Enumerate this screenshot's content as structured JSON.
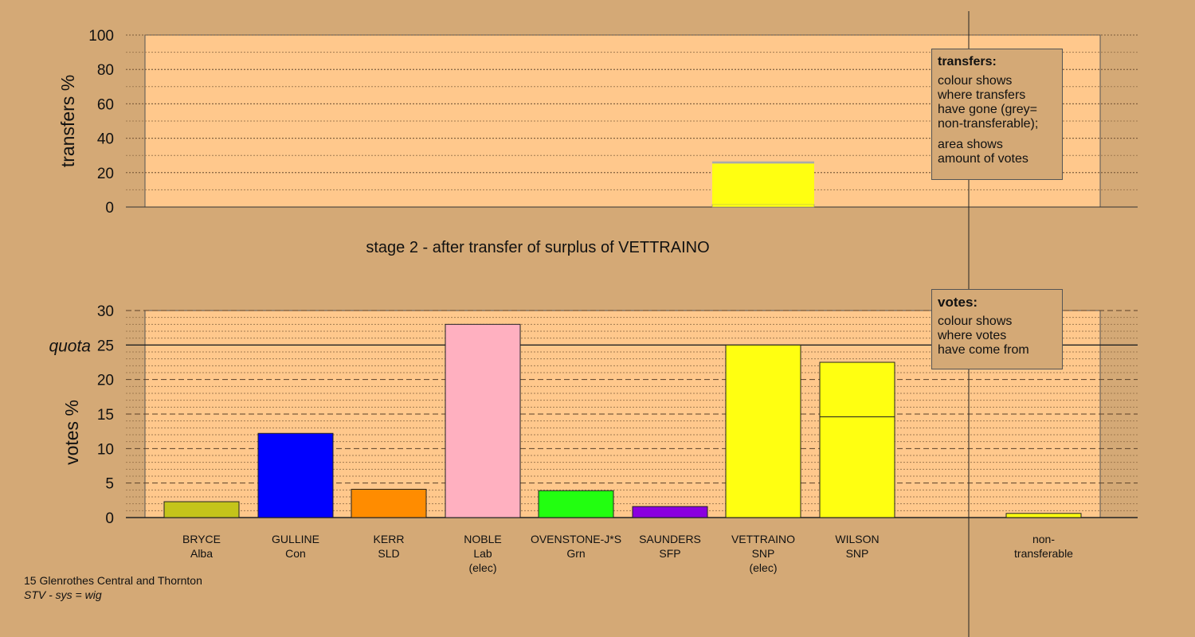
{
  "stage_title": "stage 2 - after transfer of surplus of VETTRAINO",
  "footer": {
    "ward": "15 Glenrothes Central and Thornton",
    "system": "STV - sys = wig"
  },
  "legend_transfers": {
    "title": "transfers:",
    "lines": [
      "colour shows",
      "where transfers",
      "have gone (grey=",
      "non-transferable);",
      "area shows",
      "amount of votes"
    ]
  },
  "legend_votes": {
    "title": "votes:",
    "lines": [
      "colour shows",
      "where votes",
      "have come from"
    ]
  },
  "colors": {
    "background": "#d4a976",
    "plot_bg": "#ffc88c",
    "Alba": "#c4c41a",
    "Con": "#0000ff",
    "SLD": "#ff8c00",
    "Lab": "#ffb0c0",
    "Grn": "#22ff10",
    "SFP": "#8a00e0",
    "SNP": "#ffff11",
    "nontransferable": "#aaaaaa"
  },
  "chart_data": [
    {
      "type": "bar",
      "name": "transfers",
      "ylabel": "transfers %",
      "ylim": [
        0,
        100
      ],
      "yticks": [
        0,
        20,
        40,
        60,
        80,
        100
      ],
      "categories": [
        "BRYCE",
        "GULLINE",
        "KERR",
        "NOBLE",
        "OVENSTONE-J*S",
        "SAUNDERS",
        "VETTRAINO",
        "WILSON"
      ],
      "transfer_bar": {
        "from_candidate": "VETTRAINO",
        "total": 26.5,
        "segments": [
          {
            "to": "WILSON",
            "color_key": "SNP",
            "value": 1.5,
            "thin": true
          },
          {
            "to": "WILSON",
            "color_key": "SNP",
            "value": 23.8
          },
          {
            "to": "non-transferable",
            "color_key": "nontransferable",
            "value": 1.2
          }
        ]
      }
    },
    {
      "type": "bar",
      "name": "votes",
      "ylabel": "votes %",
      "ylim": [
        0,
        30
      ],
      "yticks": [
        0,
        5,
        10,
        15,
        20,
        25,
        30
      ],
      "quota": 25,
      "quota_label": "quota",
      "candidates": [
        {
          "name": "BRYCE",
          "party": "Alba",
          "elected": false,
          "segments": [
            {
              "color_key": "Alba",
              "value": 2.3
            }
          ]
        },
        {
          "name": "GULLINE",
          "party": "Con",
          "elected": false,
          "segments": [
            {
              "color_key": "Con",
              "value": 12.2
            }
          ]
        },
        {
          "name": "KERR",
          "party": "SLD",
          "elected": false,
          "segments": [
            {
              "color_key": "SLD",
              "value": 4.1
            }
          ]
        },
        {
          "name": "NOBLE",
          "party": "Lab",
          "elected": true,
          "segments": [
            {
              "color_key": "Lab",
              "value": 28.0
            }
          ]
        },
        {
          "name": "OVENSTONE-J*S",
          "party": "Grn",
          "elected": false,
          "segments": [
            {
              "color_key": "Grn",
              "value": 3.9
            }
          ]
        },
        {
          "name": "SAUNDERS",
          "party": "SFP",
          "elected": false,
          "segments": [
            {
              "color_key": "SFP",
              "value": 1.6
            }
          ]
        },
        {
          "name": "VETTRAINO",
          "party": "SNP",
          "elected": true,
          "segments": [
            {
              "color_key": "SNP",
              "value": 25.0
            }
          ]
        },
        {
          "name": "WILSON",
          "party": "SNP",
          "elected": false,
          "segments": [
            {
              "color_key": "SNP",
              "value": 14.6
            },
            {
              "color_key": "SNP",
              "value": 7.9
            }
          ]
        }
      ],
      "nontransferable": {
        "label_lines": [
          "non-",
          "transferable"
        ],
        "value": 0.6,
        "color_key": "SNP"
      },
      "elected_label": "(elec)"
    }
  ]
}
